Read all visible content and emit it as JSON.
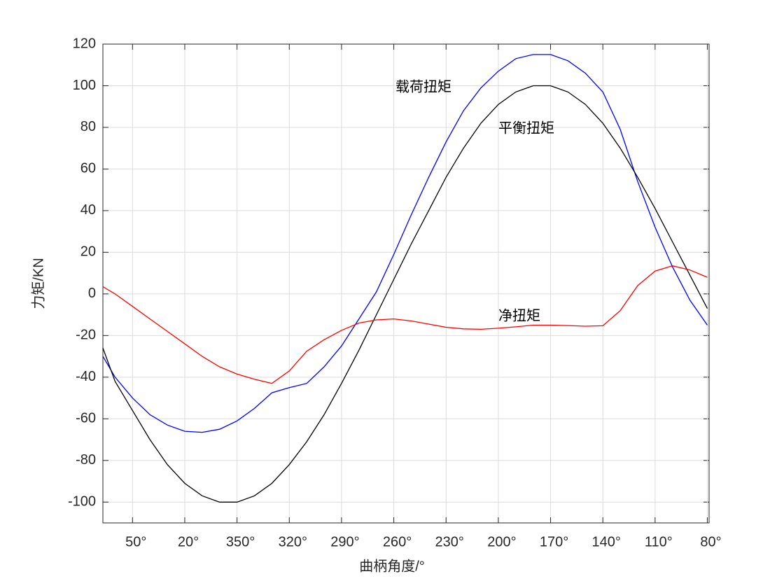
{
  "chart_data": {
    "type": "line",
    "xlabel": "曲柄角度/°",
    "ylabel": "力矩/KN",
    "x": [
      67,
      60,
      50,
      40,
      30,
      20,
      10,
      0,
      -10,
      -20,
      -30,
      -40,
      -50,
      -60,
      -70,
      -80,
      -90,
      -100,
      -110,
      -120,
      -130,
      -140,
      -150,
      -160,
      -170,
      -180,
      -190,
      -200,
      -210,
      -220,
      -230,
      -240,
      -250,
      -260,
      -270,
      -280
    ],
    "series": [
      {
        "name": "载荷扭矩",
        "color": "#0000ff",
        "values": [
          -30,
          -40,
          -50,
          -58,
          -63,
          -66,
          -66.5,
          -65,
          -61,
          -55,
          -47.5,
          -45,
          -43,
          -35,
          -25,
          -12,
          1,
          19,
          38,
          56,
          73,
          88,
          99,
          107,
          113,
          115,
          115,
          112,
          106,
          97,
          79,
          54,
          32,
          13,
          -3,
          -15
        ]
      },
      {
        "name": "平衡扭矩",
        "color": "#000000",
        "values": [
          -26,
          -42,
          -56,
          -70,
          -82,
          -91,
          -97,
          -100,
          -100,
          -97,
          -91,
          -82,
          -71,
          -58,
          -43,
          -27,
          -10,
          7,
          24,
          40,
          56,
          70,
          82,
          91,
          97,
          100,
          100,
          97,
          91,
          82,
          70,
          56,
          41,
          25,
          9,
          -7
        ]
      },
      {
        "name": "净扭矩",
        "color": "#ff0000",
        "values": [
          3.5,
          0,
          -6,
          -12,
          -18,
          -24,
          -30,
          -35,
          -38.5,
          -41,
          -43,
          -37,
          -27.5,
          -22,
          -17.5,
          -14,
          -12.5,
          -12,
          -13,
          -14.5,
          -16,
          -16.8,
          -17,
          -16.5,
          -15.8,
          -15,
          -15,
          -15.2,
          -15.5,
          -15.3,
          -8,
          4,
          11,
          13.5,
          11.5,
          8
        ]
      }
    ],
    "xlim": [
      67,
      -281
    ],
    "xticks": [
      {
        "value": 50,
        "label": "50°"
      },
      {
        "value": 20,
        "label": "20°"
      },
      {
        "value": -10,
        "label": "350°"
      },
      {
        "value": -40,
        "label": "320°"
      },
      {
        "value": -70,
        "label": "290°"
      },
      {
        "value": -100,
        "label": "260°"
      },
      {
        "value": -130,
        "label": "230°"
      },
      {
        "value": -160,
        "label": "200°"
      },
      {
        "value": -190,
        "label": "170°"
      },
      {
        "value": -220,
        "label": "140°"
      },
      {
        "value": -250,
        "label": "110°"
      },
      {
        "value": -280,
        "label": "80°"
      }
    ],
    "ylim": [
      -110,
      120
    ],
    "yticks": [
      -100,
      -80,
      -60,
      -40,
      -20,
      0,
      20,
      40,
      60,
      80,
      100,
      120
    ],
    "grid": true
  }
}
